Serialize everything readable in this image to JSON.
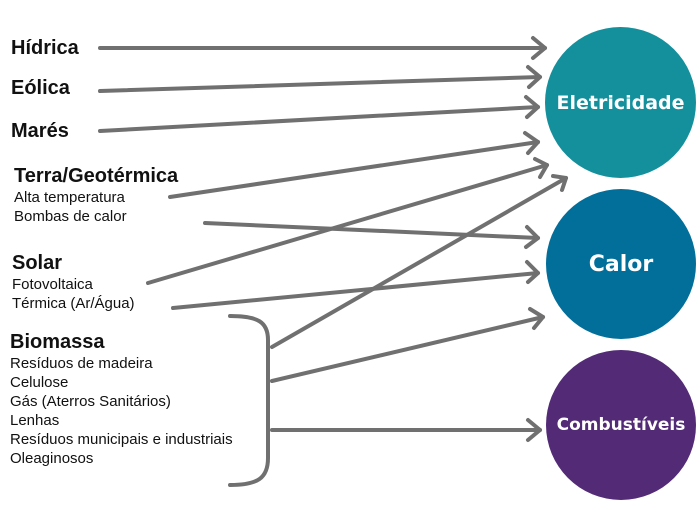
{
  "sources": {
    "hidrica": "Hídrica",
    "eolica": "Eólica",
    "mares": "Marés",
    "geo": {
      "title": "Terra/Geotérmica",
      "items": [
        "Alta temperatura",
        "Bombas de calor"
      ]
    },
    "solar": {
      "title": "Solar",
      "items": [
        "Fotovoltaica",
        "Térmica (Ar/Água)"
      ]
    },
    "biomassa": {
      "title": "Biomassa",
      "items": [
        "Resíduos de madeira",
        "Celulose",
        "Gás (Aterros Sanitários)",
        "Lenhas",
        "Resíduos municipais e industriais",
        "Oleaginosos"
      ]
    }
  },
  "outputs": {
    "eletricidade": "Eletricidade",
    "calor": "Calor",
    "combustiveis": "Combustíveis"
  },
  "colors": {
    "eletricidade": "#148f9c",
    "calor": "#026e9a",
    "combustiveis": "#522a76",
    "arrow": "#707070"
  }
}
